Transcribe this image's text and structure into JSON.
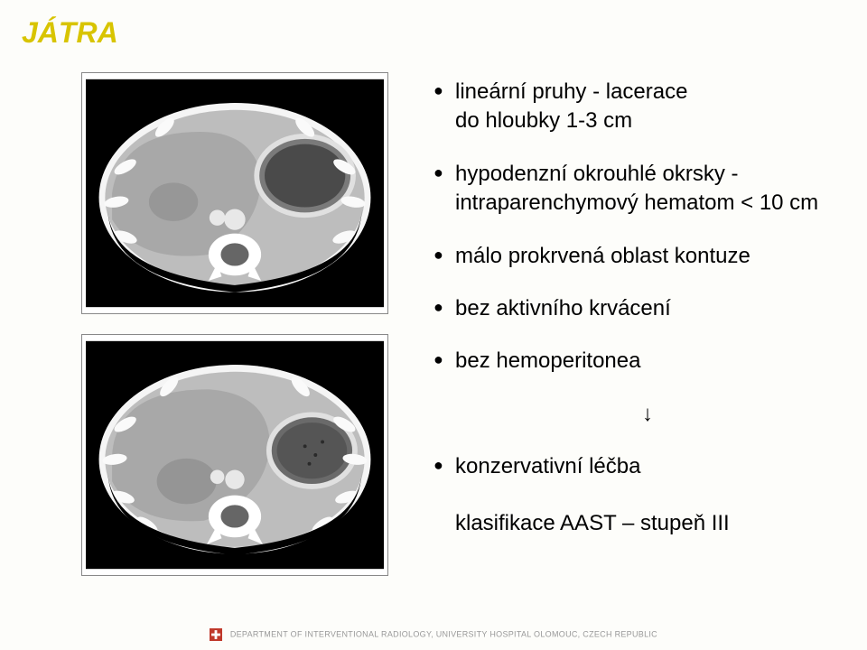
{
  "title": {
    "text": "JÁTRA",
    "color": "#d8c400"
  },
  "bullets": [
    {
      "text": "lineární pruhy - lacerace\ndo hloubky 1-3 cm"
    },
    {
      "text": "hypodenzní okrouhlé okrsky -\nintraparenchymový hematom < 10 cm"
    },
    {
      "text": "málo prokrvená oblast kontuze"
    },
    {
      "text": "bez aktivního krvácení"
    },
    {
      "text": "bez hemoperitonea"
    }
  ],
  "arrow": "↓",
  "conclusion": "konzervativní léčba",
  "subnote": "klasifikace AAST – stupeň III",
  "footer": {
    "text": "DEPARTMENT OF INTERVENTIONAL RADIOLOGY, UNIVERSITY HOSPITAL OLOMOUC, CZECH REPUBLIC",
    "logo_fill": "#c0392b",
    "logo_accent": "#ffffff"
  },
  "ct": {
    "bg": "#000000",
    "body_outer": "#f5f5f5",
    "body_inner": "#bdbdbd",
    "liver": "#a8a8a8",
    "stomach": "#7a7a7a",
    "stomach_rim": "#e0e0e0",
    "spine_outer": "#ffffff",
    "spine_inner": "#666666",
    "aorta": "#e8e8e8",
    "rib": "#fafafa",
    "lesion": "#888888"
  }
}
